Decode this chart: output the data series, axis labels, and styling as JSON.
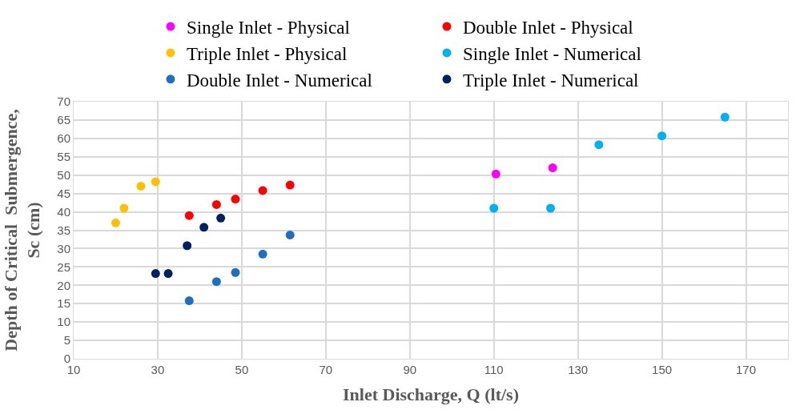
{
  "chart_data": {
    "type": "scatter",
    "xlabel": "Inlet Discharge, Q (lt/s)",
    "ylabel": "Depth of Critical  Submergence,\nSc (cm)",
    "xlim": [
      10,
      180
    ],
    "xticks": [
      10,
      30,
      50,
      70,
      90,
      110,
      130,
      150,
      170
    ],
    "ylim": [
      0,
      70
    ],
    "yticks": [
      0,
      5,
      10,
      15,
      20,
      25,
      30,
      35,
      40,
      45,
      50,
      55,
      60,
      65,
      70
    ],
    "grid": true,
    "legend": "top",
    "marker": "circle",
    "series": [
      {
        "name": "Single Inlet - Physical",
        "color": "#ff00ff",
        "x": [
          110.5,
          124
        ],
        "values": [
          50.3,
          52
        ]
      },
      {
        "name": "Double Inlet - Physical",
        "color": "#ff0000",
        "x": [
          37.5,
          44,
          48.5,
          55,
          61.5
        ],
        "values": [
          39,
          42,
          43.5,
          45.8,
          47.3
        ]
      },
      {
        "name": "Triple Inlet - Physical",
        "color": "#ffc000",
        "x": [
          20,
          22,
          26,
          29.5
        ],
        "values": [
          37,
          41,
          47,
          48.2
        ]
      },
      {
        "name": "Single Inlet - Numerical",
        "color": "#00b0f0",
        "x": [
          110,
          123.5,
          135,
          150,
          165
        ],
        "values": [
          41,
          41,
          58.3,
          60.7,
          65.8
        ]
      },
      {
        "name": "Double Inlet - Numerical",
        "color": "#1f6fc0",
        "x": [
          37.5,
          44,
          48.5,
          55,
          61.5
        ],
        "values": [
          15.8,
          21,
          23.5,
          28.5,
          33.7
        ]
      },
      {
        "name": "Triple Inlet - Numerical",
        "color": "#002060",
        "x": [
          29.5,
          32.5,
          37,
          41,
          45
        ],
        "values": [
          23.2,
          23.2,
          30.8,
          35.8,
          38.3
        ]
      }
    ]
  }
}
